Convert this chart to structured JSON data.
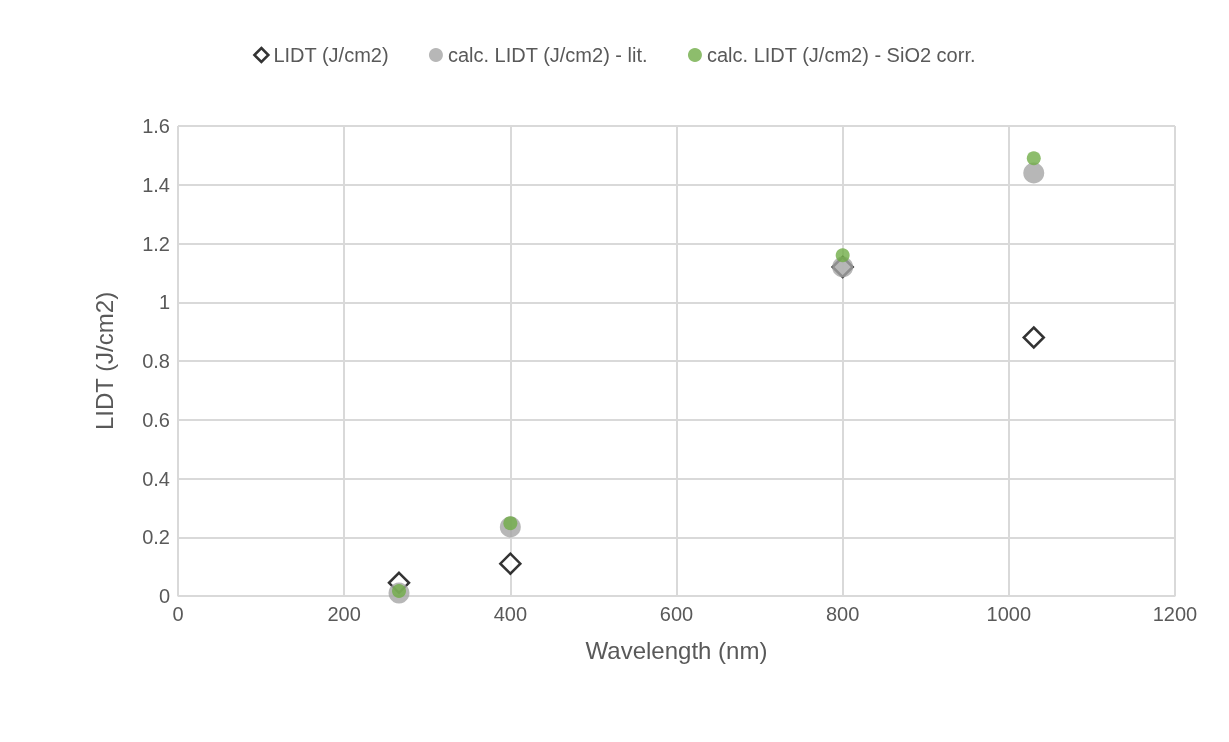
{
  "chart_data": {
    "type": "scatter",
    "xlabel": "Wavelength (nm)",
    "ylabel": "LIDT (J/cm2)",
    "x": [
      266,
      400,
      800,
      1030
    ],
    "series": [
      {
        "name": "LIDT (J/cm2)",
        "color": "#000000",
        "marker": "diamond",
        "values": [
          0.045,
          0.11,
          1.12,
          0.88
        ]
      },
      {
        "name": "calc. LIDT (J/cm2) - lit.",
        "color": "#a5a5a5",
        "marker": "circle",
        "values": [
          0.01,
          0.235,
          1.12,
          1.44
        ]
      },
      {
        "name": "calc. LIDT (J/cm2) - SiO2 corr.",
        "color": "#70ad47",
        "marker": "circle",
        "values": [
          0.017,
          0.248,
          1.16,
          1.49
        ]
      }
    ],
    "xlim": [
      0,
      1200
    ],
    "xticks": [
      0,
      200,
      400,
      600,
      800,
      1000,
      1200
    ],
    "ylim": [
      0,
      1.6
    ],
    "yticks": [
      0,
      0.2,
      0.4,
      0.6,
      0.8,
      1,
      1.2,
      1.4,
      1.6
    ],
    "grid": true,
    "legend": "top"
  }
}
